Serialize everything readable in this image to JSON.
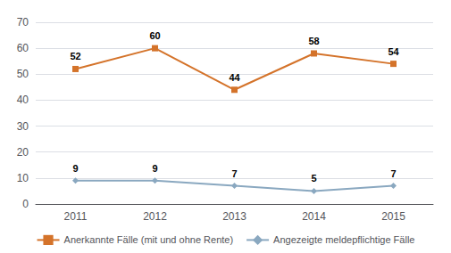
{
  "chart_data": {
    "type": "line",
    "categories": [
      "2011",
      "2012",
      "2013",
      "2014",
      "2015"
    ],
    "series": [
      {
        "name": "Anerkannte Fälle (mit und ohne Rente)",
        "color": "#d4732a",
        "marker": "square",
        "values": [
          52,
          60,
          44,
          58,
          54
        ]
      },
      {
        "name": "Angezeigte meldepflichtige Fälle",
        "color": "#8aa8c0",
        "marker": "diamond",
        "values": [
          9,
          9,
          7,
          5,
          7
        ]
      }
    ],
    "ylim": [
      0,
      70
    ],
    "yticks": [
      0,
      10,
      20,
      30,
      40,
      50,
      60,
      70
    ],
    "grid": true,
    "data_labels": true,
    "legend": "bottom"
  }
}
